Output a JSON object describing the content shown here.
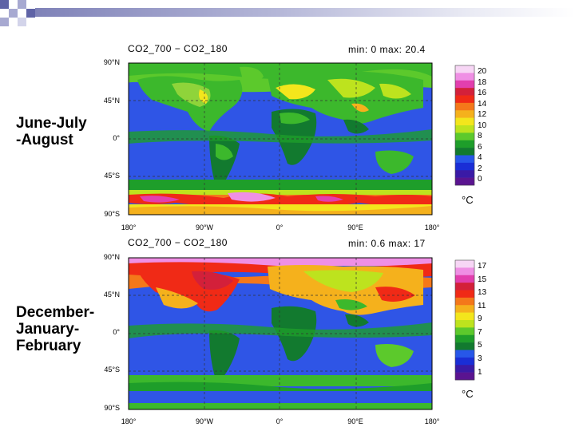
{
  "slide_labels": {
    "top": "June-July\n-August",
    "bottom": "December-\nJanuary-\nFebruary"
  },
  "panels": [
    {
      "title_left": "CO2_700 − CO2_180",
      "title_right": "min: 0  max: 20.4",
      "lat_ticks": [
        "90°N",
        "45°N",
        "0°",
        "45°S",
        "90°S"
      ],
      "lon_ticks": [
        "180°",
        "90°W",
        "0°",
        "90°E",
        "180°"
      ],
      "colorbar_labels": [
        "20",
        "18",
        "16",
        "14",
        "12",
        "10",
        "8",
        "6",
        "4",
        "2",
        "0"
      ],
      "unit": "°C"
    },
    {
      "title_left": "CO2_700 − CO2_180",
      "title_right": "min: 0.6  max: 17",
      "lat_ticks": [
        "90°N",
        "45°N",
        "0°",
        "45°S",
        "90°S"
      ],
      "lon_ticks": [
        "180°",
        "90°W",
        "0°",
        "90°E",
        "180°"
      ],
      "colorbar_labels": [
        "17",
        "15",
        "13",
        "11",
        "9",
        "7",
        "5",
        "3",
        "1"
      ],
      "unit": "°C"
    }
  ],
  "colors": {
    "deep_blue": "#1f2fd8",
    "mid_blue": "#2f55e6",
    "dark_green": "#0f8a1f",
    "green": "#3cb82c",
    "light_green": "#8fd43a",
    "yellow": "#f2f01a",
    "orange": "#f2a21a",
    "red": "#e8201c",
    "magenta": "#e23fae",
    "pink": "#f4b4ec"
  },
  "colorbar_palette": [
    "#f7d6f5",
    "#ef8fe4",
    "#e23fae",
    "#d3203a",
    "#f02a16",
    "#f4781a",
    "#f5b11c",
    "#f3e61c",
    "#bde31e",
    "#5cc92c",
    "#1e9e2a",
    "#127a2f",
    "#2757e9",
    "#1a2ed6",
    "#3a1aa6",
    "#5a1490"
  ]
}
